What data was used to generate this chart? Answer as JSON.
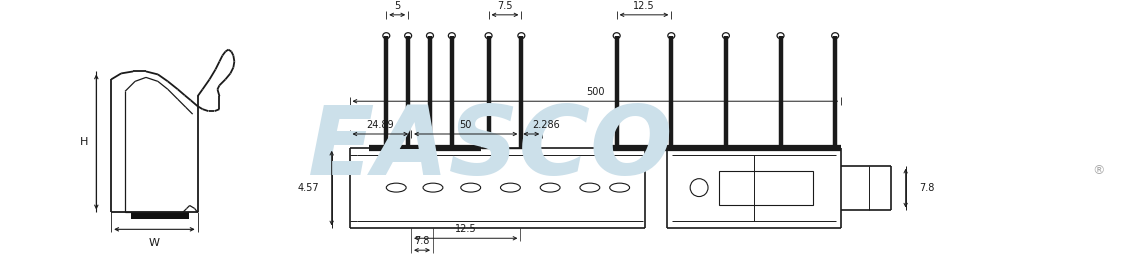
{
  "bg_color": "#ffffff",
  "watermark_color": "#cce0ea",
  "line_color": "#1a1a1a",
  "dim_color": "#1a1a1a",
  "label_H": "H",
  "label_W": "W",
  "dim_5": "5",
  "dim_7p5": "7.5",
  "dim_12p5": "12.5",
  "dim_500": "500",
  "dim_24p89": "24.89",
  "dim_50": "50",
  "dim_2p286": "2.286",
  "dim_4p57": "4.57",
  "dim_7p8r": "7.8",
  "dim_7p8b": "7.8",
  "dim_12p5b": "12.5"
}
